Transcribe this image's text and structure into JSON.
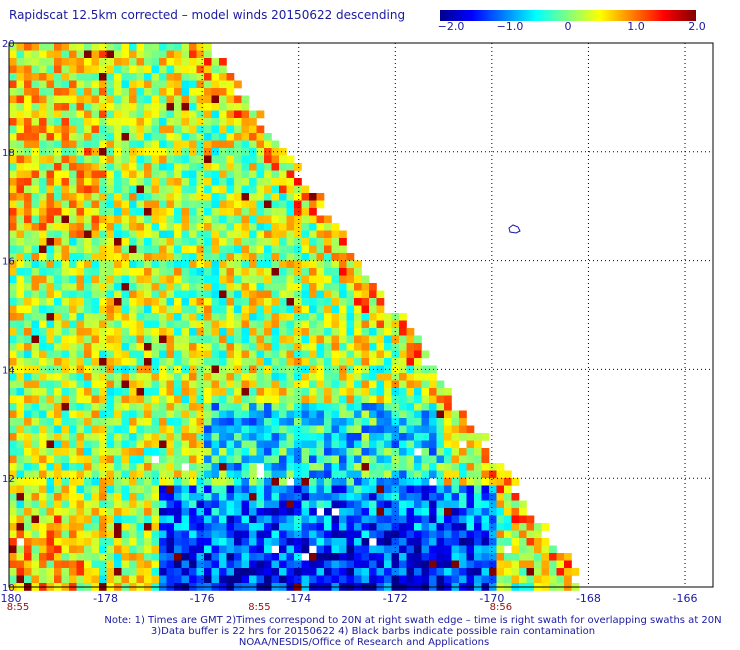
{
  "title": "Rapidscat 12.5km corrected – model winds 20150622 descending",
  "colorbar": {
    "ticks": [
      "−2.0",
      "−1.0",
      "0",
      "1.0",
      "2.0"
    ],
    "tick_values": [
      -2.0,
      -1.0,
      0,
      1.0,
      2.0
    ],
    "colors": [
      "#00008f",
      "#0000ff",
      "#0080ff",
      "#00ffff",
      "#80ff80",
      "#ffff00",
      "#ff8000",
      "#ff0000",
      "#800000"
    ]
  },
  "map": {
    "lon_range": [
      -180,
      -165
    ],
    "lat_range": [
      10,
      20
    ],
    "lon_ticks": [
      "-180",
      "-178",
      "-176",
      "-174",
      "-172",
      "-170",
      "-168",
      "-166"
    ],
    "lon_tick_values": [
      -180,
      -178,
      -176,
      -174,
      -172,
      -170,
      -168,
      -166
    ],
    "lat_ticks": [
      "10",
      "12",
      "14",
      "16",
      "18",
      "20"
    ],
    "lat_tick_values": [
      10,
      12,
      14,
      16,
      18,
      20
    ],
    "time_labels": [
      "8:55",
      "8:55",
      "8:56"
    ],
    "time_label_lons": [
      -180,
      -175,
      -170
    ],
    "time_label_color": "#a01010",
    "grid": "dotted"
  },
  "notes": {
    "line1": "Note: 1) Times are GMT 2)Times correspond to 20N at right swath edge – time is right swath for overlapping swaths at 20N",
    "line2": "3)Data buffer is 22 hrs for 20150622 4) Black barbs indicate possible rain contamination",
    "line3": "NOAA/NESDIS/Office of Research and Applications"
  }
}
